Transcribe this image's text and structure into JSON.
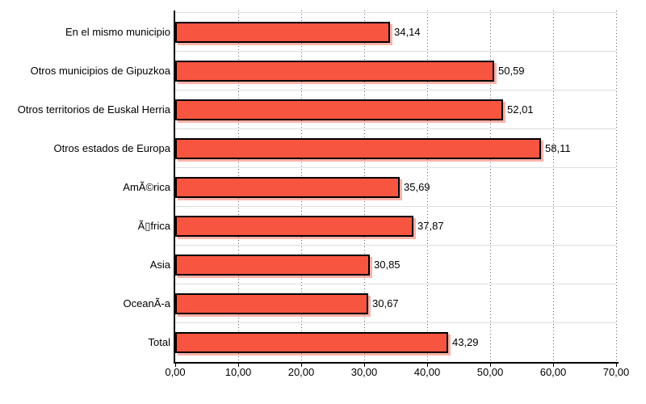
{
  "chart_data": {
    "type": "bar",
    "orientation": "horizontal",
    "title": "",
    "categories": [
      "En el mismo municipio",
      "Otros municipios de Gipuzkoa",
      "Otros territorios de Euskal Herria",
      "Otros estados de Europa",
      "AmÃ©rica",
      "Ã▯frica",
      "Asia",
      "OceanÃ-a",
      "Total"
    ],
    "values": [
      34.14,
      50.59,
      52.01,
      58.11,
      35.69,
      37.87,
      30.85,
      30.67,
      43.29
    ],
    "value_labels": [
      "34,14",
      "50,59",
      "52,01",
      "58,11",
      "35,69",
      "37,87",
      "30,85",
      "30,67",
      "43,29"
    ],
    "xlabel": "",
    "ylabel": "",
    "xlim": [
      0,
      70
    ],
    "x_ticks": [
      0,
      10,
      20,
      30,
      40,
      50,
      60,
      70
    ],
    "x_tick_labels": [
      "0,00",
      "10,00",
      "20,00",
      "30,00",
      "40,00",
      "50,00",
      "60,00",
      "70,00"
    ],
    "legend": "none",
    "grid": {
      "vertical_gridlines": "dotted",
      "horizontal_band_separators": true
    },
    "colors": {
      "bar_fill": "#F85540",
      "bar_border": "#000000",
      "bar_shadow": "rgba(248,85,64,0.45)",
      "grid_dots": "#666666",
      "band_separator": "#DDDDDD",
      "axis": "#000000",
      "text": "#000000",
      "background": "#FFFFFF"
    }
  }
}
